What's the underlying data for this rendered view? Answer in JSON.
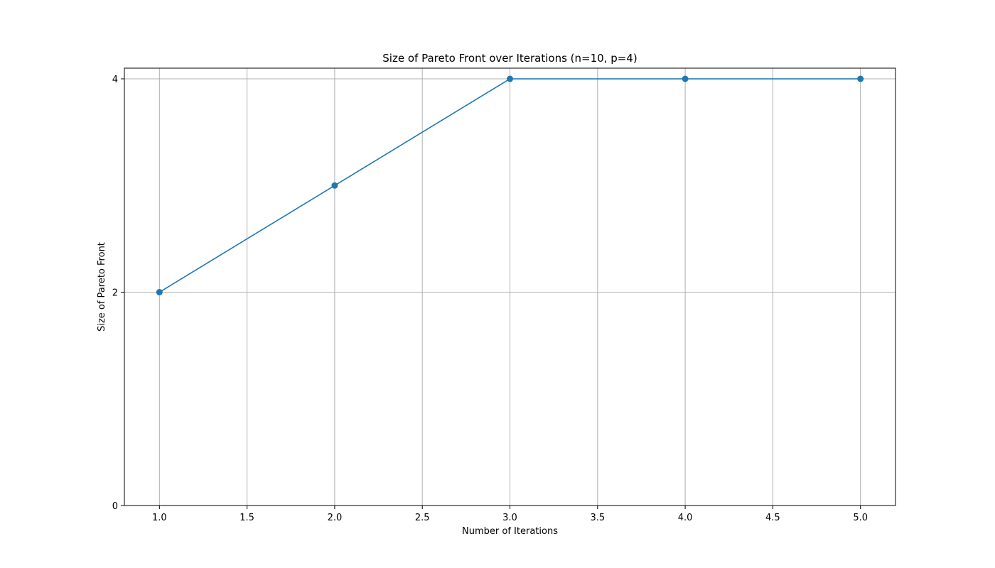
{
  "chart_data": {
    "type": "line",
    "title": "Size of Pareto Front over Iterations (n=10, p=4)",
    "xlabel": "Number of Iterations",
    "ylabel": "Size of Pareto Front",
    "xlim": [
      0.8,
      5.2
    ],
    "ylim": [
      0,
      4.1
    ],
    "x_ticks": [
      1.0,
      1.5,
      2.0,
      2.5,
      3.0,
      3.5,
      4.0,
      4.5,
      5.0
    ],
    "x_tick_labels": [
      "1.0",
      "1.5",
      "2.0",
      "2.5",
      "3.0",
      "3.5",
      "4.0",
      "4.5",
      "5.0"
    ],
    "y_ticks": [
      0,
      2,
      4
    ],
    "y_tick_labels": [
      "0",
      "2",
      "4"
    ],
    "grid": true,
    "series": [
      {
        "x": [
          1,
          2,
          3,
          4,
          5
        ],
        "values": [
          2,
          3,
          4,
          4,
          4
        ],
        "color": "#1f77b4",
        "marker": "circle"
      }
    ]
  }
}
